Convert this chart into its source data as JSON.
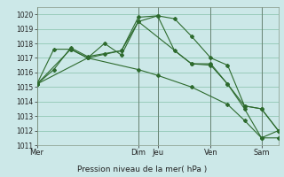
{
  "bg_color": "#cce8e8",
  "grid_color": "#99ccbb",
  "line_color": "#2d6a2d",
  "title": "Pression niveau de la mer( hPa )",
  "ylim": [
    1011,
    1020.5
  ],
  "yticks": [
    1011,
    1012,
    1013,
    1014,
    1015,
    1016,
    1017,
    1018,
    1019,
    1020
  ],
  "xtick_labels": [
    "Mer",
    "Dim",
    "Jeu",
    "Ven",
    "Sam"
  ],
  "xtick_positions": [
    0.0,
    0.42,
    0.5,
    0.72,
    0.93
  ],
  "vline_positions": [
    0.0,
    0.42,
    0.5,
    0.72,
    0.93
  ],
  "series": [
    {
      "x": [
        0.0,
        0.07,
        0.14,
        0.21,
        0.28,
        0.35,
        0.42,
        0.5,
        0.57,
        0.64,
        0.72,
        0.79,
        0.86,
        0.93,
        1.0
      ],
      "y": [
        1015.2,
        1016.2,
        1017.7,
        1017.1,
        1017.3,
        1017.5,
        1019.8,
        1019.9,
        1019.7,
        1018.5,
        1017.0,
        1016.5,
        1013.7,
        1013.5,
        1012.0
      ]
    },
    {
      "x": [
        0.0,
        0.07,
        0.14,
        0.21,
        0.28,
        0.35,
        0.42,
        0.5,
        0.57,
        0.64,
        0.72,
        0.79,
        0.86,
        0.93,
        1.0
      ],
      "y": [
        1015.2,
        1017.6,
        1017.6,
        1017.0,
        1018.0,
        1017.2,
        1019.5,
        1019.9,
        1017.5,
        1016.6,
        1016.5,
        1015.2,
        1013.7,
        1013.5,
        1012.0
      ]
    },
    {
      "x": [
        0.0,
        0.14,
        0.21,
        0.35,
        0.42,
        0.64,
        0.72,
        0.79,
        0.86,
        0.93,
        1.0
      ],
      "y": [
        1015.2,
        1017.6,
        1017.0,
        1017.5,
        1019.5,
        1016.6,
        1016.6,
        1015.2,
        1013.5,
        1011.5,
        1011.5
      ]
    },
    {
      "x": [
        0.0,
        0.21,
        0.42,
        0.5,
        0.64,
        0.79,
        0.86,
        0.93,
        1.0
      ],
      "y": [
        1015.2,
        1017.0,
        1016.2,
        1015.8,
        1015.0,
        1013.8,
        1012.7,
        1011.5,
        1012.0
      ]
    }
  ]
}
